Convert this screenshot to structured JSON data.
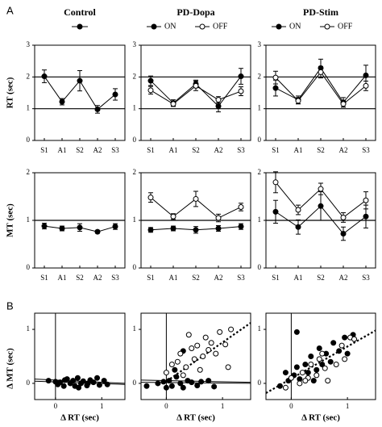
{
  "panel_labels": [
    "A",
    "B"
  ],
  "chart_data": [
    {
      "type": "line",
      "panel": "A",
      "group": "Control",
      "measure": "RT",
      "title": "Control",
      "ylabel": "RT (sec)",
      "ylim": [
        0,
        3
      ],
      "yticks": [
        0,
        1,
        2,
        3
      ],
      "ref_lines": [
        1,
        2
      ],
      "categories": [
        "S1",
        "A1",
        "S2",
        "A2",
        "S3"
      ],
      "series": [
        {
          "name": "",
          "marker": "filled",
          "values": [
            2.02,
            1.22,
            1.88,
            0.98,
            1.45
          ],
          "errors": [
            0.2,
            0.1,
            0.32,
            0.12,
            0.18
          ]
        }
      ]
    },
    {
      "type": "line",
      "panel": "A",
      "group": "PD-Dopa",
      "measure": "RT",
      "title": "PD-Dopa",
      "ylabel": "",
      "ylim": [
        0,
        3
      ],
      "yticks": [
        0,
        1,
        2,
        3
      ],
      "ref_lines": [
        1,
        2
      ],
      "categories": [
        "S1",
        "A1",
        "S2",
        "A2",
        "S3"
      ],
      "legend": [
        "ON",
        "OFF"
      ],
      "series": [
        {
          "name": "ON",
          "marker": "filled",
          "values": [
            1.88,
            1.18,
            1.78,
            1.08,
            2.02
          ],
          "errors": [
            0.15,
            0.1,
            0.12,
            0.18,
            0.25
          ]
        },
        {
          "name": "OFF",
          "marker": "open",
          "values": [
            1.58,
            1.15,
            1.72,
            1.28,
            1.55
          ],
          "errors": [
            0.12,
            0.08,
            0.15,
            0.1,
            0.14
          ]
        }
      ]
    },
    {
      "type": "line",
      "panel": "A",
      "group": "PD-Stim",
      "measure": "RT",
      "title": "PD-Stim",
      "ylabel": "",
      "ylim": [
        0,
        3
      ],
      "yticks": [
        0,
        1,
        2,
        3
      ],
      "ref_lines": [
        1,
        2
      ],
      "categories": [
        "S1",
        "A1",
        "S2",
        "A2",
        "S3"
      ],
      "legend": [
        "ON",
        "OFF"
      ],
      "series": [
        {
          "name": "ON",
          "marker": "filled",
          "values": [
            1.65,
            1.28,
            2.28,
            1.2,
            2.05
          ],
          "errors": [
            0.25,
            0.12,
            0.28,
            0.15,
            0.32
          ]
        },
        {
          "name": "OFF",
          "marker": "open",
          "values": [
            1.98,
            1.25,
            2.15,
            1.15,
            1.72
          ],
          "errors": [
            0.2,
            0.1,
            0.18,
            0.1,
            0.15
          ]
        }
      ]
    },
    {
      "type": "line",
      "panel": "A",
      "group": "Control",
      "measure": "MT",
      "title": "",
      "ylabel": "MT (sec)",
      "ylim": [
        0,
        2
      ],
      "yticks": [
        0,
        1,
        2
      ],
      "ref_lines": [
        1
      ],
      "categories": [
        "S1",
        "A1",
        "S2",
        "A2",
        "S3"
      ],
      "series": [
        {
          "name": "",
          "marker": "filled",
          "values": [
            0.88,
            0.83,
            0.85,
            0.76,
            0.87
          ],
          "errors": [
            0.06,
            0.05,
            0.08,
            0.03,
            0.06
          ]
        }
      ]
    },
    {
      "type": "line",
      "panel": "A",
      "group": "PD-Dopa",
      "measure": "MT",
      "title": "",
      "ylabel": "",
      "ylim": [
        0,
        2
      ],
      "yticks": [
        0,
        1,
        2
      ],
      "ref_lines": [
        1
      ],
      "categories": [
        "S1",
        "A1",
        "S2",
        "A2",
        "S3"
      ],
      "series": [
        {
          "name": "ON",
          "marker": "filled",
          "values": [
            0.8,
            0.83,
            0.8,
            0.83,
            0.87
          ],
          "errors": [
            0.05,
            0.05,
            0.07,
            0.06,
            0.06
          ]
        },
        {
          "name": "OFF",
          "marker": "open",
          "values": [
            1.48,
            1.08,
            1.45,
            1.05,
            1.28
          ],
          "errors": [
            0.1,
            0.06,
            0.16,
            0.08,
            0.08
          ]
        }
      ]
    },
    {
      "type": "line",
      "panel": "A",
      "group": "PD-Stim",
      "measure": "MT",
      "title": "",
      "ylabel": "",
      "ylim": [
        0,
        2
      ],
      "yticks": [
        0,
        1,
        2
      ],
      "ref_lines": [
        1
      ],
      "categories": [
        "S1",
        "A1",
        "S2",
        "A2",
        "S3"
      ],
      "series": [
        {
          "name": "ON",
          "marker": "filled",
          "values": [
            1.18,
            0.86,
            1.3,
            0.72,
            1.08
          ],
          "errors": [
            0.24,
            0.15,
            0.3,
            0.14,
            0.24
          ]
        },
        {
          "name": "OFF",
          "marker": "open",
          "values": [
            1.8,
            1.22,
            1.66,
            1.06,
            1.42
          ],
          "errors": [
            0.22,
            0.1,
            0.12,
            0.1,
            0.18
          ]
        }
      ]
    },
    {
      "type": "scatter",
      "panel": "B",
      "group": "Control",
      "xlabel": "Δ RT (sec)",
      "ylabel": "Δ MT (sec)",
      "xlim": [
        -0.45,
        1.5
      ],
      "ylim": [
        -0.3,
        1.3
      ],
      "xticks": [
        0,
        1
      ],
      "yticks": [
        0,
        1
      ],
      "series": [
        {
          "name": "",
          "marker": "filled",
          "points": [
            [
              -0.15,
              0.05
            ],
            [
              0.0,
              0.03
            ],
            [
              0.05,
              -0.02
            ],
            [
              0.1,
              0.02
            ],
            [
              0.18,
              -0.05
            ],
            [
              0.25,
              0.08
            ],
            [
              0.32,
              0.0
            ],
            [
              0.38,
              0.05
            ],
            [
              0.42,
              -0.05
            ],
            [
              0.48,
              0.1
            ],
            [
              0.55,
              0.0
            ],
            [
              0.6,
              0.04
            ],
            [
              0.68,
              -0.04
            ],
            [
              0.75,
              0.06
            ],
            [
              0.82,
              0.02
            ],
            [
              0.9,
              0.1
            ],
            [
              0.95,
              -0.03
            ],
            [
              1.05,
              0.05
            ],
            [
              1.12,
              -0.02
            ],
            [
              0.2,
              0.06
            ],
            [
              0.5,
              -0.08
            ],
            [
              0.7,
              0.0
            ]
          ]
        }
      ],
      "fits": [
        {
          "style": "solid",
          "from": [
            -0.45,
            0.04
          ],
          "to": [
            1.5,
            -0.02
          ]
        },
        {
          "style": "solid",
          "from": [
            -0.45,
            0.08
          ],
          "to": [
            1.5,
            0.0
          ]
        }
      ]
    },
    {
      "type": "scatter",
      "panel": "B",
      "group": "PD-Dopa",
      "xlabel": "Δ RT (sec)",
      "ylabel": "",
      "xlim": [
        -0.45,
        1.5
      ],
      "ylim": [
        -0.3,
        1.3
      ],
      "xticks": [
        0,
        1
      ],
      "yticks": [
        0,
        1
      ],
      "series": [
        {
          "name": "ON",
          "marker": "filled",
          "points": [
            [
              -0.35,
              -0.05
            ],
            [
              -0.15,
              0.0
            ],
            [
              -0.05,
              0.03
            ],
            [
              0.0,
              -0.08
            ],
            [
              0.05,
              0.05
            ],
            [
              0.1,
              -0.05
            ],
            [
              0.18,
              0.12
            ],
            [
              0.25,
              0.0
            ],
            [
              0.3,
              -0.08
            ],
            [
              0.38,
              0.05
            ],
            [
              0.45,
              0.02
            ],
            [
              0.55,
              -0.04
            ],
            [
              0.62,
              0.03
            ],
            [
              0.75,
              0.05
            ],
            [
              0.85,
              -0.06
            ],
            [
              0.3,
              0.6
            ],
            [
              0.15,
              0.25
            ]
          ]
        },
        {
          "name": "OFF",
          "marker": "open",
          "points": [
            [
              0.0,
              0.2
            ],
            [
              0.1,
              0.35
            ],
            [
              0.2,
              0.4
            ],
            [
              0.25,
              0.55
            ],
            [
              0.35,
              0.3
            ],
            [
              0.45,
              0.65
            ],
            [
              0.55,
              0.7
            ],
            [
              0.65,
              0.5
            ],
            [
              0.7,
              0.85
            ],
            [
              0.8,
              0.75
            ],
            [
              0.88,
              0.55
            ],
            [
              0.95,
              0.95
            ],
            [
              1.05,
              0.72
            ],
            [
              1.15,
              1.0
            ],
            [
              0.6,
              0.25
            ],
            [
              0.4,
              0.9
            ],
            [
              0.3,
              0.15
            ],
            [
              1.1,
              0.3
            ],
            [
              0.5,
              0.45
            ],
            [
              0.75,
              0.62
            ]
          ]
        }
      ],
      "fits": [
        {
          "style": "solid",
          "from": [
            -0.45,
            0.06
          ],
          "to": [
            1.5,
            0.02
          ]
        },
        {
          "style": "solid",
          "from": [
            -0.45,
            0.02
          ],
          "to": [
            1.5,
            0.0
          ]
        },
        {
          "style": "dotted",
          "from": [
            -0.05,
            0.0
          ],
          "to": [
            1.5,
            1.12
          ]
        }
      ]
    },
    {
      "type": "scatter",
      "panel": "B",
      "group": "PD-Stim",
      "xlabel": "Δ RT (sec)",
      "ylabel": "",
      "xlim": [
        -0.45,
        1.5
      ],
      "ylim": [
        -0.3,
        1.3
      ],
      "xticks": [
        0,
        1
      ],
      "yticks": [
        0,
        1
      ],
      "series": [
        {
          "name": "ON",
          "marker": "filled",
          "points": [
            [
              -0.2,
              -0.05
            ],
            [
              -0.05,
              0.05
            ],
            [
              0.05,
              0.15
            ],
            [
              0.1,
              0.3
            ],
            [
              0.15,
              0.08
            ],
            [
              0.25,
              0.35
            ],
            [
              0.3,
              0.2
            ],
            [
              0.35,
              0.5
            ],
            [
              0.45,
              0.25
            ],
            [
              0.5,
              0.65
            ],
            [
              0.55,
              0.35
            ],
            [
              0.62,
              0.55
            ],
            [
              0.7,
              0.4
            ],
            [
              0.75,
              0.75
            ],
            [
              0.85,
              0.6
            ],
            [
              0.95,
              0.85
            ],
            [
              1.0,
              0.55
            ],
            [
              1.1,
              0.9
            ],
            [
              0.1,
              0.95
            ],
            [
              0.4,
              0.05
            ],
            [
              -0.1,
              0.2
            ]
          ]
        },
        {
          "name": "OFF",
          "marker": "open",
          "points": [
            [
              -0.1,
              -0.08
            ],
            [
              0.0,
              0.1
            ],
            [
              0.15,
              0.0
            ],
            [
              0.2,
              0.2
            ],
            [
              0.3,
              0.1
            ],
            [
              0.35,
              0.35
            ],
            [
              0.45,
              0.15
            ],
            [
              0.5,
              0.45
            ],
            [
              0.6,
              0.28
            ],
            [
              0.65,
              0.05
            ],
            [
              0.8,
              0.35
            ],
            [
              0.9,
              0.7
            ],
            [
              0.95,
              0.45
            ],
            [
              1.05,
              0.85
            ],
            [
              1.12,
              0.82
            ],
            [
              0.55,
              0.55
            ],
            [
              0.25,
              0.05
            ]
          ]
        }
      ],
      "fits": [
        {
          "style": "dotted",
          "from": [
            -0.45,
            -0.18
          ],
          "to": [
            1.5,
            0.98
          ]
        }
      ]
    }
  ]
}
